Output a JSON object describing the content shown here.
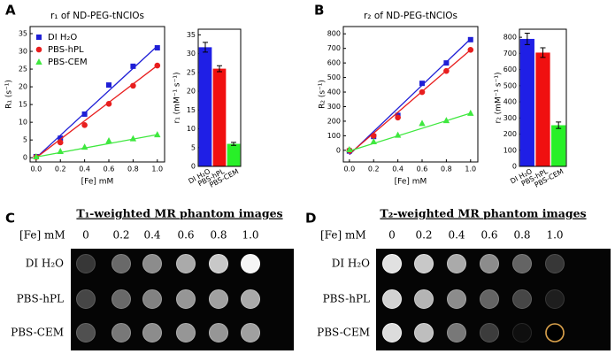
{
  "panel_labels": [
    "A",
    "B",
    "C",
    "D"
  ],
  "chart_data": [
    {
      "type": "scatter",
      "title": "r₁ of ND-PEG-tNCIOs",
      "x_label": "[Fe] mM",
      "y_label": "R₁ (s⁻¹)",
      "x": [
        0,
        0.2,
        0.4,
        0.6,
        0.8,
        1.0
      ],
      "xlim": [
        -0.05,
        1.06
      ],
      "xticks": [
        {
          "value": 0,
          "label": "0.0"
        },
        0.2,
        0.4,
        0.6,
        0.8,
        {
          "value": 1,
          "label": "1.0"
        }
      ],
      "ylim": [
        -1.2,
        37
      ],
      "yticks": [
        0,
        5,
        10,
        15,
        20,
        25,
        30,
        35
      ],
      "legend": "upper left",
      "fit_x": [
        0,
        1
      ],
      "series": [
        {
          "name": "DI H₂O",
          "color": "#1f1fd6",
          "marker": "square",
          "values": [
            0.3,
            5.5,
            12.3,
            20.5,
            25.8,
            31
          ],
          "fit": [
            0,
            31.5
          ]
        },
        {
          "name": "PBS-hPL",
          "color": "#e81e1e",
          "marker": "circle",
          "values": [
            0.2,
            4.3,
            9.2,
            15.2,
            20.3,
            26
          ],
          "fit": [
            0,
            26
          ]
        },
        {
          "name": "PBS-CEM",
          "color": "#3fe83f",
          "marker": "triangle",
          "values": [
            0.3,
            1.8,
            3,
            4.8,
            5.4,
            6.5
          ],
          "fit": [
            0.2,
            6.5
          ]
        }
      ]
    },
    {
      "type": "bar",
      "y_label": "r₁ (mM⁻¹ s⁻¹)",
      "categories": [
        "DI H₂O",
        "PBS-hPL",
        "PBS-CEM"
      ],
      "values": [
        31.7,
        26,
        6
      ],
      "errors": [
        1.3,
        0.8,
        0.4
      ],
      "colors": [
        "#1f1fe6",
        "#f01010",
        "#28f028"
      ],
      "ylim": [
        0,
        36.5
      ],
      "yticks": [
        0,
        5,
        10,
        15,
        20,
        25,
        30,
        35
      ]
    },
    {
      "type": "scatter",
      "title": "r₂ of ND-PEG-tNCIOs",
      "x_label": "[Fe] mM",
      "y_label": "R₂ (s⁻¹)",
      "x": [
        0,
        0.2,
        0.4,
        0.6,
        0.8,
        1.0
      ],
      "xlim": [
        -0.05,
        1.06
      ],
      "xticks": [
        {
          "value": 0,
          "label": "0.0"
        },
        0.2,
        0.4,
        0.6,
        0.8,
        {
          "value": 1,
          "label": "1.0"
        }
      ],
      "ylim": [
        -80,
        850
      ],
      "yticks": [
        0,
        100,
        200,
        300,
        400,
        500,
        600,
        700,
        800
      ],
      "fit_x": [
        0,
        1
      ],
      "series": [
        {
          "color": "#1f1fd6",
          "marker": "square",
          "values": [
            -5,
            95,
            240,
            460,
            600,
            760
          ],
          "fit": [
            -30,
            765
          ]
        },
        {
          "color": "#e81e1e",
          "marker": "circle",
          "values": [
            0,
            100,
            225,
            400,
            545,
            690
          ],
          "fit": [
            -25,
            690
          ]
        },
        {
          "color": "#3fe83f",
          "marker": "triangle",
          "values": [
            5,
            60,
            105,
            185,
            205,
            255
          ],
          "fit": [
            -5,
            255
          ]
        }
      ]
    },
    {
      "type": "bar",
      "y_label": "r₂ (mM⁻¹ s⁻¹)",
      "categories": [
        "DI H₂O",
        "PBS-hPL",
        "PBS-CEM"
      ],
      "values": [
        790,
        705,
        255
      ],
      "errors": [
        35,
        30,
        20
      ],
      "colors": [
        "#1f1fe6",
        "#f01010",
        "#28f028"
      ],
      "ylim": [
        0,
        850
      ],
      "yticks": [
        0,
        100,
        200,
        300,
        400,
        500,
        600,
        700,
        800
      ]
    }
  ],
  "phantoms": [
    {
      "title": "T₁-weighted MR phantom images",
      "column_header": "[Fe] mM",
      "columns": [
        "0",
        "0.2",
        "0.4",
        "0.6",
        "0.8",
        "1.0"
      ],
      "rows": [
        "DI H₂O",
        "PBS-hPL",
        "PBS-CEM"
      ]
    },
    {
      "title": "T₂-weighted MR phantom images",
      "column_header": "[Fe] mM",
      "columns": [
        "0",
        "0.2",
        "0.4",
        "0.6",
        "0.8",
        "1.0"
      ],
      "rows": [
        "DI H₂O",
        "PBS-hPL",
        "PBS-CEM"
      ]
    }
  ]
}
